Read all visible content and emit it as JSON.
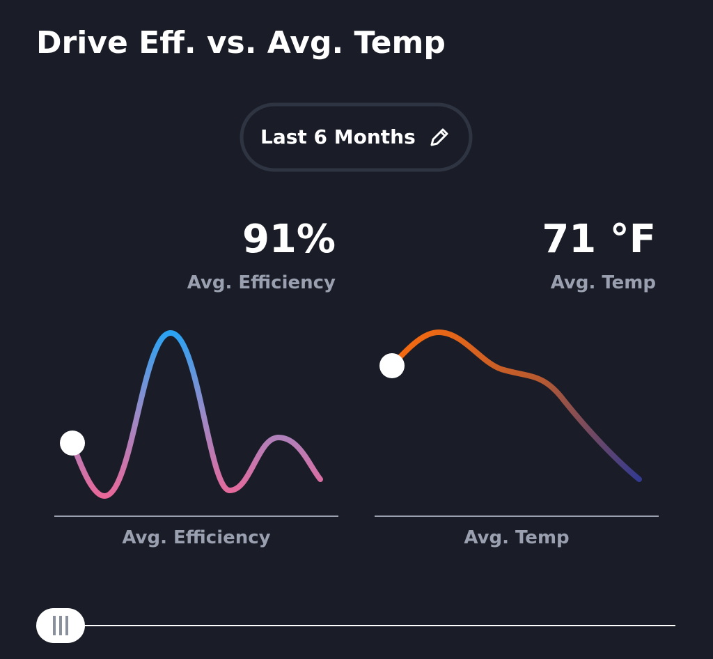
{
  "header": {
    "title": "Drive Eff. vs. Avg. Temp"
  },
  "filter": {
    "label": "Last 6 Months"
  },
  "stats": [
    {
      "value": "91%",
      "label": "Avg. Efficiency"
    },
    {
      "value": "71 °F",
      "label": "Avg. Temp"
    }
  ],
  "charts": [
    {
      "label": "Avg. Efficiency"
    },
    {
      "label": "Avg. Temp"
    }
  ]
}
